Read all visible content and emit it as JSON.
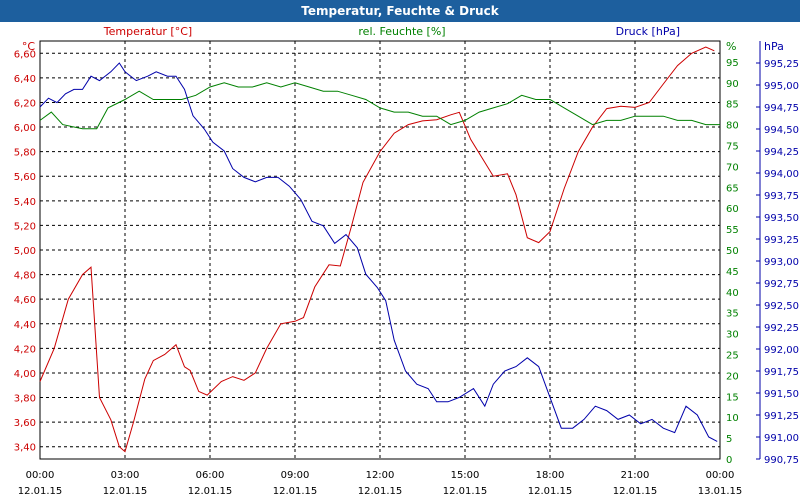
{
  "title": "Temperatur, Feuchte & Druck",
  "colors": {
    "temp": "#cc0000",
    "hum": "#008000",
    "press": "#0000aa",
    "title_bg": "#1d5f9e",
    "grid": "#000000"
  },
  "chart_data": {
    "type": "line",
    "xlabel": "",
    "x": [
      "12.01.15 00:00",
      "12.01.15 03:00",
      "12.01.15 06:00",
      "12.01.15 09:00",
      "12.01.15 12:00",
      "12.01.15 15:00",
      "12.01.15 18:00",
      "12.01.15 21:00",
      "13.01.15 00:00"
    ],
    "x_ticks": [
      {
        "time": "00:00",
        "date": "12.01.15"
      },
      {
        "time": "03:00",
        "date": "12.01.15"
      },
      {
        "time": "06:00",
        "date": "12.01.15"
      },
      {
        "time": "09:00",
        "date": "12.01.15"
      },
      {
        "time": "12:00",
        "date": "12.01.15"
      },
      {
        "time": "15:00",
        "date": "12.01.15"
      },
      {
        "time": "18:00",
        "date": "12.01.15"
      },
      {
        "time": "21:00",
        "date": "12.01.15"
      },
      {
        "time": "00:00",
        "date": "13.01.15"
      }
    ],
    "x_range_hours": [
      0,
      24
    ],
    "grid": true,
    "axes": {
      "temp": {
        "unit_label": "°C",
        "ylim": [
          3.3,
          6.7
        ],
        "ticks": [
          "6,60",
          "6,40",
          "6,20",
          "6,00",
          "5,80",
          "5,60",
          "5,40",
          "5,20",
          "5,00",
          "4,80",
          "4,60",
          "4,40",
          "4,20",
          "4,00",
          "3,80",
          "3,60",
          "3,40"
        ]
      },
      "hum": {
        "unit_label": "%",
        "ylim": [
          0,
          100
        ],
        "ticks": [
          "95",
          "90",
          "85",
          "80",
          "75",
          "70",
          "65",
          "60",
          "55",
          "50",
          "45",
          "40",
          "35",
          "30",
          "25",
          "20",
          "15",
          "10",
          "5",
          "0"
        ]
      },
      "press": {
        "unit_label": "hPa",
        "ylim": [
          990.75,
          995.5
        ],
        "ticks": [
          "995,25",
          "995,00",
          "994,75",
          "994,50",
          "994,25",
          "994,00",
          "993,75",
          "993,50",
          "993,25",
          "993,00",
          "992,75",
          "992,50",
          "992,25",
          "992,00",
          "991,75",
          "991,50",
          "991,25",
          "991,00",
          "990,75"
        ]
      }
    },
    "series": [
      {
        "name": "Temperatur [°C]",
        "axis": "temp",
        "points": [
          [
            0,
            3.93
          ],
          [
            0.5,
            4.2
          ],
          [
            1,
            4.6
          ],
          [
            1.5,
            4.8
          ],
          [
            1.8,
            4.86
          ],
          [
            2.1,
            3.8
          ],
          [
            2.5,
            3.62
          ],
          [
            2.8,
            3.4
          ],
          [
            3.0,
            3.36
          ],
          [
            3.3,
            3.6
          ],
          [
            3.7,
            3.95
          ],
          [
            4.0,
            4.1
          ],
          [
            4.4,
            4.15
          ],
          [
            4.8,
            4.23
          ],
          [
            5.1,
            4.05
          ],
          [
            5.3,
            4.02
          ],
          [
            5.6,
            3.85
          ],
          [
            5.9,
            3.82
          ],
          [
            6.4,
            3.93
          ],
          [
            6.8,
            3.97
          ],
          [
            7.2,
            3.94
          ],
          [
            7.6,
            4.0
          ],
          [
            8.0,
            4.2
          ],
          [
            8.5,
            4.4
          ],
          [
            9.0,
            4.42
          ],
          [
            9.3,
            4.45
          ],
          [
            9.7,
            4.7
          ],
          [
            10.2,
            4.88
          ],
          [
            10.6,
            4.87
          ],
          [
            11.0,
            5.2
          ],
          [
            11.4,
            5.55
          ],
          [
            12.0,
            5.8
          ],
          [
            12.5,
            5.95
          ],
          [
            13.0,
            6.02
          ],
          [
            13.5,
            6.05
          ],
          [
            14.0,
            6.06
          ],
          [
            14.5,
            6.1
          ],
          [
            14.8,
            6.12
          ],
          [
            15.2,
            5.9
          ],
          [
            15.6,
            5.75
          ],
          [
            16.0,
            5.6
          ],
          [
            16.5,
            5.62
          ],
          [
            16.8,
            5.45
          ],
          [
            17.2,
            5.1
          ],
          [
            17.6,
            5.06
          ],
          [
            18.0,
            5.15
          ],
          [
            18.5,
            5.5
          ],
          [
            19.0,
            5.8
          ],
          [
            19.5,
            6.0
          ],
          [
            20.0,
            6.15
          ],
          [
            20.5,
            6.17
          ],
          [
            21.0,
            6.16
          ],
          [
            21.5,
            6.2
          ],
          [
            22.0,
            6.35
          ],
          [
            22.5,
            6.5
          ],
          [
            23.0,
            6.6
          ],
          [
            23.5,
            6.65
          ],
          [
            23.8,
            6.62
          ]
        ]
      },
      {
        "name": "rel. Feuchte [%]",
        "axis": "hum",
        "points": [
          [
            0,
            81
          ],
          [
            0.4,
            83
          ],
          [
            0.8,
            80
          ],
          [
            1.5,
            79
          ],
          [
            2.0,
            79
          ],
          [
            2.4,
            84
          ],
          [
            3.0,
            86
          ],
          [
            3.5,
            88
          ],
          [
            4.0,
            86
          ],
          [
            4.5,
            86
          ],
          [
            5.0,
            86
          ],
          [
            5.5,
            87
          ],
          [
            6.0,
            89
          ],
          [
            6.5,
            90
          ],
          [
            7.0,
            89
          ],
          [
            7.5,
            89
          ],
          [
            8.0,
            90
          ],
          [
            8.5,
            89
          ],
          [
            9.0,
            90
          ],
          [
            9.5,
            89
          ],
          [
            10.0,
            88
          ],
          [
            10.5,
            88
          ],
          [
            11.0,
            87
          ],
          [
            11.5,
            86
          ],
          [
            12.0,
            84
          ],
          [
            12.5,
            83
          ],
          [
            13.0,
            83
          ],
          [
            13.5,
            82
          ],
          [
            14.0,
            82
          ],
          [
            14.5,
            80
          ],
          [
            15.0,
            81
          ],
          [
            15.5,
            83
          ],
          [
            16.0,
            84
          ],
          [
            16.5,
            85
          ],
          [
            17.0,
            87
          ],
          [
            17.5,
            86
          ],
          [
            18.0,
            86
          ],
          [
            18.5,
            84
          ],
          [
            19.0,
            82
          ],
          [
            19.5,
            80
          ],
          [
            20.0,
            81
          ],
          [
            20.5,
            81
          ],
          [
            21.0,
            82
          ],
          [
            21.5,
            82
          ],
          [
            22.0,
            82
          ],
          [
            22.5,
            81
          ],
          [
            23.0,
            81
          ],
          [
            23.5,
            80
          ],
          [
            24.0,
            80
          ]
        ]
      },
      {
        "name": "Druck [hPa]",
        "axis": "press",
        "points": [
          [
            0,
            994.75
          ],
          [
            0.3,
            994.85
          ],
          [
            0.6,
            994.8
          ],
          [
            0.9,
            994.9
          ],
          [
            1.2,
            994.95
          ],
          [
            1.5,
            994.95
          ],
          [
            1.8,
            995.1
          ],
          [
            2.1,
            995.05
          ],
          [
            2.5,
            995.15
          ],
          [
            2.8,
            995.25
          ],
          [
            3.0,
            995.15
          ],
          [
            3.4,
            995.05
          ],
          [
            3.8,
            995.1
          ],
          [
            4.1,
            995.15
          ],
          [
            4.5,
            995.1
          ],
          [
            4.8,
            995.1
          ],
          [
            5.1,
            994.95
          ],
          [
            5.4,
            994.65
          ],
          [
            5.8,
            994.5
          ],
          [
            6.1,
            994.35
          ],
          [
            6.5,
            994.25
          ],
          [
            6.8,
            994.05
          ],
          [
            7.2,
            993.95
          ],
          [
            7.6,
            993.9
          ],
          [
            8.0,
            993.95
          ],
          [
            8.4,
            993.95
          ],
          [
            8.8,
            993.85
          ],
          [
            9.2,
            993.7
          ],
          [
            9.6,
            993.45
          ],
          [
            10.0,
            993.4
          ],
          [
            10.4,
            993.2
          ],
          [
            10.8,
            993.3
          ],
          [
            11.2,
            993.15
          ],
          [
            11.5,
            992.85
          ],
          [
            11.9,
            992.7
          ],
          [
            12.2,
            992.55
          ],
          [
            12.5,
            992.1
          ],
          [
            12.9,
            991.75
          ],
          [
            13.3,
            991.6
          ],
          [
            13.7,
            991.55
          ],
          [
            14.0,
            991.4
          ],
          [
            14.4,
            991.4
          ],
          [
            14.8,
            991.45
          ],
          [
            15.3,
            991.55
          ],
          [
            15.7,
            991.35
          ],
          [
            16.0,
            991.6
          ],
          [
            16.4,
            991.75
          ],
          [
            16.8,
            991.8
          ],
          [
            17.2,
            991.9
          ],
          [
            17.6,
            991.8
          ],
          [
            18.0,
            991.45
          ],
          [
            18.4,
            991.1
          ],
          [
            18.8,
            991.1
          ],
          [
            19.2,
            991.2
          ],
          [
            19.6,
            991.35
          ],
          [
            20.0,
            991.3
          ],
          [
            20.4,
            991.2
          ],
          [
            20.8,
            991.25
          ],
          [
            21.2,
            991.15
          ],
          [
            21.6,
            991.2
          ],
          [
            22.0,
            991.1
          ],
          [
            22.4,
            991.05
          ],
          [
            22.8,
            991.35
          ],
          [
            23.2,
            991.25
          ],
          [
            23.6,
            991.0
          ],
          [
            23.9,
            990.95
          ]
        ]
      }
    ]
  }
}
